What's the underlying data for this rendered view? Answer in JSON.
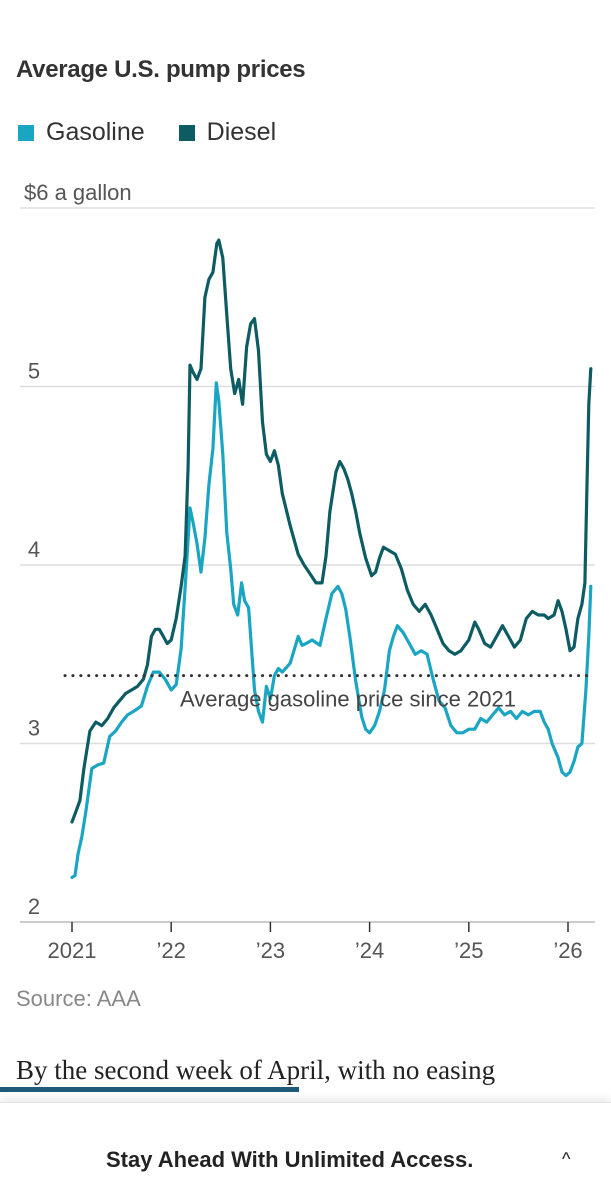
{
  "chart_data": {
    "type": "line",
    "title": "Average U.S. pump prices",
    "ylabel": "$6 a gallon",
    "ylim": [
      2,
      6
    ],
    "yticks": [
      2,
      3,
      4,
      5,
      6
    ],
    "ytick_labels": [
      "2",
      "3",
      "4",
      "5",
      "$6 a gallon"
    ],
    "xlim": [
      2021.0,
      2026.25
    ],
    "xticks": [
      2021,
      2022,
      2023,
      2024,
      2025,
      2026
    ],
    "xtick_labels": [
      "2021",
      "’22",
      "’23",
      "’24",
      "’25",
      "’26"
    ],
    "series": [
      {
        "name": "Gasoline",
        "color": "#1aa6c3",
        "points": [
          [
            2021.0,
            2.25
          ],
          [
            2021.03,
            2.26
          ],
          [
            2021.06,
            2.38
          ],
          [
            2021.1,
            2.48
          ],
          [
            2021.14,
            2.62
          ],
          [
            2021.2,
            2.86
          ],
          [
            2021.26,
            2.88
          ],
          [
            2021.32,
            2.89
          ],
          [
            2021.38,
            3.04
          ],
          [
            2021.44,
            3.07
          ],
          [
            2021.5,
            3.12
          ],
          [
            2021.56,
            3.16
          ],
          [
            2021.62,
            3.18
          ],
          [
            2021.7,
            3.21
          ],
          [
            2021.76,
            3.32
          ],
          [
            2021.82,
            3.4
          ],
          [
            2021.88,
            3.4
          ],
          [
            2021.94,
            3.36
          ],
          [
            2022.0,
            3.3
          ],
          [
            2022.05,
            3.33
          ],
          [
            2022.1,
            3.53
          ],
          [
            2022.15,
            3.96
          ],
          [
            2022.19,
            4.32
          ],
          [
            2022.22,
            4.24
          ],
          [
            2022.26,
            4.12
          ],
          [
            2022.3,
            3.96
          ],
          [
            2022.34,
            4.15
          ],
          [
            2022.38,
            4.45
          ],
          [
            2022.42,
            4.65
          ],
          [
            2022.455,
            5.02
          ],
          [
            2022.48,
            4.92
          ],
          [
            2022.52,
            4.62
          ],
          [
            2022.56,
            4.18
          ],
          [
            2022.6,
            3.98
          ],
          [
            2022.63,
            3.78
          ],
          [
            2022.67,
            3.72
          ],
          [
            2022.71,
            3.9
          ],
          [
            2022.74,
            3.8
          ],
          [
            2022.78,
            3.76
          ],
          [
            2022.84,
            3.3
          ],
          [
            2022.88,
            3.18
          ],
          [
            2022.92,
            3.12
          ],
          [
            2022.96,
            3.32
          ],
          [
            2023.0,
            3.25
          ],
          [
            2023.04,
            3.38
          ],
          [
            2023.08,
            3.42
          ],
          [
            2023.12,
            3.4
          ],
          [
            2023.2,
            3.45
          ],
          [
            2023.28,
            3.6
          ],
          [
            2023.32,
            3.55
          ],
          [
            2023.36,
            3.56
          ],
          [
            2023.42,
            3.58
          ],
          [
            2023.5,
            3.55
          ],
          [
            2023.56,
            3.7
          ],
          [
            2023.62,
            3.84
          ],
          [
            2023.68,
            3.88
          ],
          [
            2023.72,
            3.84
          ],
          [
            2023.76,
            3.75
          ],
          [
            2023.8,
            3.6
          ],
          [
            2023.86,
            3.35
          ],
          [
            2023.92,
            3.15
          ],
          [
            2023.96,
            3.08
          ],
          [
            2024.0,
            3.06
          ],
          [
            2024.05,
            3.1
          ],
          [
            2024.1,
            3.18
          ],
          [
            2024.15,
            3.3
          ],
          [
            2024.2,
            3.52
          ],
          [
            2024.24,
            3.6
          ],
          [
            2024.28,
            3.66
          ],
          [
            2024.34,
            3.62
          ],
          [
            2024.4,
            3.56
          ],
          [
            2024.46,
            3.5
          ],
          [
            2024.52,
            3.52
          ],
          [
            2024.58,
            3.5
          ],
          [
            2024.64,
            3.36
          ],
          [
            2024.7,
            3.24
          ],
          [
            2024.76,
            3.2
          ],
          [
            2024.82,
            3.1
          ],
          [
            2024.88,
            3.06
          ],
          [
            2024.94,
            3.06
          ],
          [
            2025.0,
            3.08
          ],
          [
            2025.06,
            3.08
          ],
          [
            2025.12,
            3.14
          ],
          [
            2025.18,
            3.12
          ],
          [
            2025.24,
            3.16
          ],
          [
            2025.3,
            3.2
          ],
          [
            2025.36,
            3.16
          ],
          [
            2025.42,
            3.18
          ],
          [
            2025.48,
            3.14
          ],
          [
            2025.54,
            3.18
          ],
          [
            2025.6,
            3.16
          ],
          [
            2025.66,
            3.18
          ],
          [
            2025.72,
            3.18
          ],
          [
            2025.76,
            3.12
          ],
          [
            2025.8,
            3.08
          ],
          [
            2025.84,
            3.0
          ],
          [
            2025.9,
            2.92
          ],
          [
            2025.94,
            2.84
          ],
          [
            2025.98,
            2.82
          ],
          [
            2026.02,
            2.84
          ],
          [
            2026.06,
            2.9
          ],
          [
            2026.1,
            2.98
          ],
          [
            2026.14,
            3.0
          ],
          [
            2026.18,
            3.3
          ],
          [
            2026.21,
            3.6
          ],
          [
            2026.23,
            3.88
          ]
        ]
      },
      {
        "name": "Diesel",
        "color": "#0d5c63",
        "points": [
          [
            2021.0,
            2.56
          ],
          [
            2021.04,
            2.62
          ],
          [
            2021.08,
            2.68
          ],
          [
            2021.12,
            2.86
          ],
          [
            2021.18,
            3.07
          ],
          [
            2021.24,
            3.12
          ],
          [
            2021.3,
            3.1
          ],
          [
            2021.36,
            3.14
          ],
          [
            2021.42,
            3.2
          ],
          [
            2021.48,
            3.24
          ],
          [
            2021.54,
            3.28
          ],
          [
            2021.6,
            3.3
          ],
          [
            2021.66,
            3.32
          ],
          [
            2021.72,
            3.36
          ],
          [
            2021.76,
            3.44
          ],
          [
            2021.8,
            3.6
          ],
          [
            2021.84,
            3.64
          ],
          [
            2021.88,
            3.64
          ],
          [
            2021.92,
            3.6
          ],
          [
            2021.96,
            3.56
          ],
          [
            2022.0,
            3.58
          ],
          [
            2022.05,
            3.7
          ],
          [
            2022.1,
            3.88
          ],
          [
            2022.14,
            4.05
          ],
          [
            2022.17,
            4.55
          ],
          [
            2022.19,
            5.12
          ],
          [
            2022.22,
            5.08
          ],
          [
            2022.26,
            5.04
          ],
          [
            2022.3,
            5.1
          ],
          [
            2022.34,
            5.5
          ],
          [
            2022.38,
            5.6
          ],
          [
            2022.42,
            5.64
          ],
          [
            2022.46,
            5.8
          ],
          [
            2022.48,
            5.82
          ],
          [
            2022.52,
            5.72
          ],
          [
            2022.56,
            5.4
          ],
          [
            2022.6,
            5.1
          ],
          [
            2022.64,
            4.96
          ],
          [
            2022.68,
            5.04
          ],
          [
            2022.72,
            4.9
          ],
          [
            2022.76,
            5.22
          ],
          [
            2022.8,
            5.35
          ],
          [
            2022.84,
            5.38
          ],
          [
            2022.88,
            5.2
          ],
          [
            2022.92,
            4.8
          ],
          [
            2022.96,
            4.62
          ],
          [
            2023.0,
            4.58
          ],
          [
            2023.04,
            4.64
          ],
          [
            2023.08,
            4.56
          ],
          [
            2023.12,
            4.4
          ],
          [
            2023.2,
            4.22
          ],
          [
            2023.28,
            4.06
          ],
          [
            2023.34,
            4.0
          ],
          [
            2023.4,
            3.95
          ],
          [
            2023.46,
            3.9
          ],
          [
            2023.52,
            3.9
          ],
          [
            2023.56,
            4.05
          ],
          [
            2023.6,
            4.3
          ],
          [
            2023.66,
            4.52
          ],
          [
            2023.7,
            4.58
          ],
          [
            2023.74,
            4.54
          ],
          [
            2023.78,
            4.48
          ],
          [
            2023.82,
            4.4
          ],
          [
            2023.86,
            4.3
          ],
          [
            2023.9,
            4.18
          ],
          [
            2023.96,
            4.04
          ],
          [
            2024.02,
            3.94
          ],
          [
            2024.06,
            3.96
          ],
          [
            2024.1,
            4.04
          ],
          [
            2024.14,
            4.1
          ],
          [
            2024.2,
            4.08
          ],
          [
            2024.26,
            4.06
          ],
          [
            2024.32,
            3.98
          ],
          [
            2024.38,
            3.86
          ],
          [
            2024.44,
            3.78
          ],
          [
            2024.5,
            3.74
          ],
          [
            2024.56,
            3.78
          ],
          [
            2024.62,
            3.72
          ],
          [
            2024.68,
            3.64
          ],
          [
            2024.74,
            3.56
          ],
          [
            2024.8,
            3.52
          ],
          [
            2024.86,
            3.5
          ],
          [
            2024.92,
            3.52
          ],
          [
            2025.0,
            3.58
          ],
          [
            2025.06,
            3.68
          ],
          [
            2025.1,
            3.64
          ],
          [
            2025.16,
            3.56
          ],
          [
            2025.22,
            3.54
          ],
          [
            2025.28,
            3.6
          ],
          [
            2025.34,
            3.66
          ],
          [
            2025.4,
            3.6
          ],
          [
            2025.46,
            3.54
          ],
          [
            2025.52,
            3.58
          ],
          [
            2025.58,
            3.7
          ],
          [
            2025.64,
            3.74
          ],
          [
            2025.7,
            3.72
          ],
          [
            2025.76,
            3.72
          ],
          [
            2025.8,
            3.7
          ],
          [
            2025.86,
            3.72
          ],
          [
            2025.9,
            3.8
          ],
          [
            2025.94,
            3.74
          ],
          [
            2025.98,
            3.64
          ],
          [
            2026.02,
            3.52
          ],
          [
            2026.06,
            3.54
          ],
          [
            2026.1,
            3.7
          ],
          [
            2026.14,
            3.78
          ],
          [
            2026.17,
            3.9
          ],
          [
            2026.19,
            4.4
          ],
          [
            2026.21,
            4.9
          ],
          [
            2026.23,
            5.1
          ]
        ]
      }
    ],
    "reference_line": {
      "value": 3.38,
      "label": "Average gasoline price since 2021",
      "style": "dotted"
    },
    "legend_position": "top-left",
    "grid": "horizontal"
  },
  "source": "Source: AAA",
  "article": {
    "text": "By the second week of April, with no easing",
    "read_progress": 0.49
  },
  "banner": {
    "text": "Stay Ahead With Unlimited Access.",
    "chevron": "^"
  },
  "icons": {
    "chevron": "chevron-up-icon"
  }
}
